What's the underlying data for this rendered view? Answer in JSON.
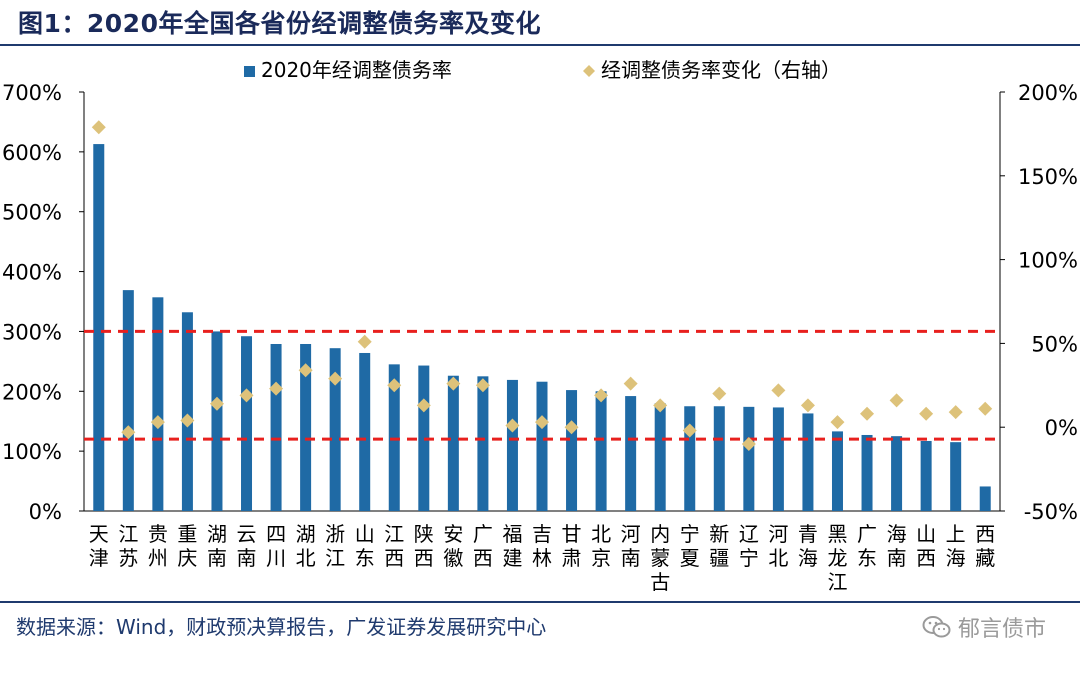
{
  "title": "图1：2020年全国各省份经调整债务率及变化",
  "source": "数据来源：Wind，财政预决算报告，广发证券发展研究中心",
  "watermark": "郁言债市",
  "watermark_icon": "wechat-icon",
  "colors": {
    "bar": "#1f6aa5",
    "marker": "#ddc27a",
    "ref_line": "#e8201e",
    "title": "#1a2a5a"
  },
  "chart_data": {
    "type": "bar",
    "categories": [
      "天津",
      "江苏",
      "贵州",
      "重庆",
      "湖南",
      "云南",
      "四川",
      "湖北",
      "浙江",
      "山东",
      "江西",
      "陕西",
      "安徽",
      "广西",
      "福建",
      "吉林",
      "甘肃",
      "北京",
      "河南",
      "内蒙古",
      "宁夏",
      "新疆",
      "辽宁",
      "河北",
      "青海",
      "黑龙江",
      "广东",
      "海南",
      "山西",
      "上海",
      "西藏"
    ],
    "series": [
      {
        "name": "2020年经调整债务率",
        "axis": "left",
        "kind": "bar",
        "values": [
          613,
          369,
          357,
          332,
          300,
          292,
          279,
          279,
          272,
          264,
          245,
          243,
          226,
          225,
          219,
          216,
          202,
          200,
          192,
          180,
          175,
          175,
          174,
          173,
          163,
          133,
          127,
          125,
          117,
          115,
          41
        ]
      },
      {
        "name": "经调整债务率变化（右轴）",
        "axis": "right",
        "kind": "scatter",
        "values": [
          179,
          -3,
          3,
          4,
          14,
          19,
          23,
          34,
          29,
          51,
          25,
          13,
          26,
          25,
          1,
          3,
          0,
          19,
          26,
          13,
          -2,
          20,
          -10,
          22,
          13,
          3,
          8,
          16,
          8,
          9,
          11
        ]
      }
    ],
    "y_left": {
      "min": 0,
      "max": 700,
      "ticks": [
        "0%",
        "100%",
        "200%",
        "300%",
        "400%",
        "500%",
        "600%",
        "700%"
      ]
    },
    "y_right": {
      "min": -50,
      "max": 200,
      "ticks": [
        "-50%",
        "0%",
        "50%",
        "100%",
        "150%",
        "200%"
      ]
    },
    "reference_lines_left": [
      300,
      120
    ],
    "legend": "top",
    "grid": false
  }
}
